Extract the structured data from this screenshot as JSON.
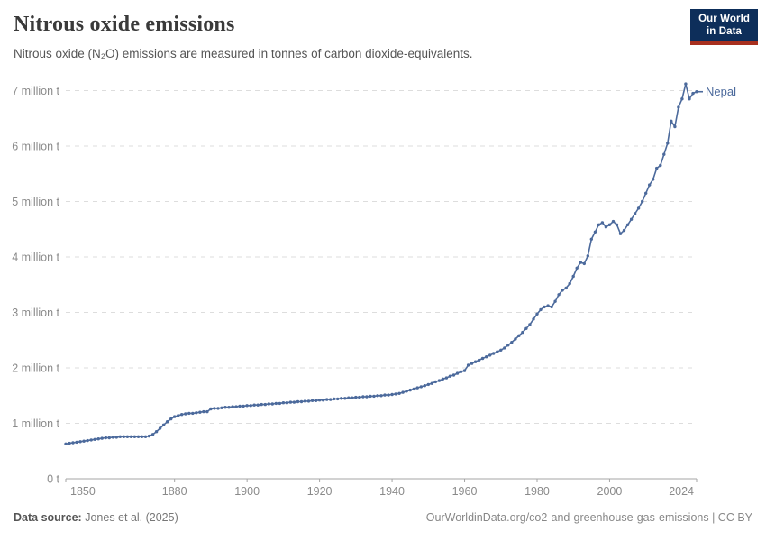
{
  "header": {
    "title": "Nitrous oxide emissions",
    "subtitle": "Nitrous oxide (N₂O) emissions are measured in tonnes of carbon dioxide-equivalents."
  },
  "logo": {
    "line1": "Our World",
    "line2": "in Data",
    "bg_color": "#0d2e5a",
    "accent_color": "#a8301f"
  },
  "chart_data": {
    "type": "line",
    "title": "Nitrous oxide emissions",
    "xlabel": "",
    "ylabel": "tonnes of CO₂-equivalents",
    "x_start": 1850,
    "x_end": 2024,
    "x_step": 1,
    "xlim": [
      1850,
      2024
    ],
    "ylim": [
      0,
      7.3
    ],
    "grid": "horizontal-dashed",
    "legend_position": "end-of-line",
    "xticks": [
      1850,
      1880,
      1900,
      1920,
      1940,
      1960,
      1980,
      2000,
      2024
    ],
    "yticks": [
      0,
      1,
      2,
      3,
      4,
      5,
      6,
      7
    ],
    "ytick_labels": [
      "0 t",
      "1 million t",
      "2 million t",
      "3 million t",
      "4 million t",
      "5 million t",
      "6 million t",
      "7 million t"
    ],
    "unit": "million t",
    "series": [
      {
        "name": "Nepal",
        "color": "#4c6a9c",
        "values_million_t": [
          0.63,
          0.64,
          0.65,
          0.66,
          0.67,
          0.68,
          0.69,
          0.7,
          0.71,
          0.72,
          0.73,
          0.74,
          0.74,
          0.75,
          0.75,
          0.76,
          0.76,
          0.76,
          0.76,
          0.76,
          0.76,
          0.76,
          0.76,
          0.77,
          0.8,
          0.85,
          0.91,
          0.97,
          1.03,
          1.08,
          1.12,
          1.14,
          1.16,
          1.17,
          1.18,
          1.18,
          1.19,
          1.2,
          1.21,
          1.21,
          1.26,
          1.27,
          1.27,
          1.28,
          1.29,
          1.29,
          1.3,
          1.3,
          1.31,
          1.31,
          1.32,
          1.32,
          1.33,
          1.33,
          1.34,
          1.34,
          1.35,
          1.35,
          1.36,
          1.36,
          1.37,
          1.37,
          1.38,
          1.38,
          1.39,
          1.39,
          1.4,
          1.4,
          1.41,
          1.41,
          1.42,
          1.42,
          1.43,
          1.43,
          1.44,
          1.44,
          1.45,
          1.45,
          1.46,
          1.46,
          1.47,
          1.47,
          1.48,
          1.48,
          1.49,
          1.49,
          1.5,
          1.5,
          1.51,
          1.51,
          1.52,
          1.53,
          1.54,
          1.56,
          1.58,
          1.6,
          1.62,
          1.64,
          1.66,
          1.68,
          1.7,
          1.72,
          1.75,
          1.77,
          1.8,
          1.82,
          1.85,
          1.87,
          1.9,
          1.93,
          1.95,
          2.05,
          2.08,
          2.11,
          2.14,
          2.17,
          2.2,
          2.23,
          2.26,
          2.29,
          2.32,
          2.36,
          2.41,
          2.46,
          2.52,
          2.58,
          2.64,
          2.71,
          2.78,
          2.88,
          2.97,
          3.05,
          3.1,
          3.12,
          3.1,
          3.2,
          3.32,
          3.4,
          3.44,
          3.52,
          3.65,
          3.8,
          3.9,
          3.88,
          4.02,
          4.32,
          4.45,
          4.58,
          4.62,
          4.54,
          4.58,
          4.64,
          4.58,
          4.42,
          4.48,
          4.58,
          4.68,
          4.78,
          4.88,
          5.0,
          5.15,
          5.3,
          5.4,
          5.6,
          5.65,
          5.85,
          6.05,
          6.45,
          6.35,
          6.7,
          6.85,
          7.12,
          6.85,
          6.95,
          6.98
        ]
      }
    ],
    "end_label": "Nepal",
    "colors": {
      "gridline": "#dddddd",
      "axis": "#a5a5a5",
      "tick_label": "#8a8a8a",
      "series": "#4c6a9c"
    }
  },
  "footer": {
    "source_label": "Data source:",
    "source_value": "Jones et al. (2025)",
    "link": "OurWorldinData.org/co2-and-greenhouse-gas-emissions | CC BY"
  }
}
